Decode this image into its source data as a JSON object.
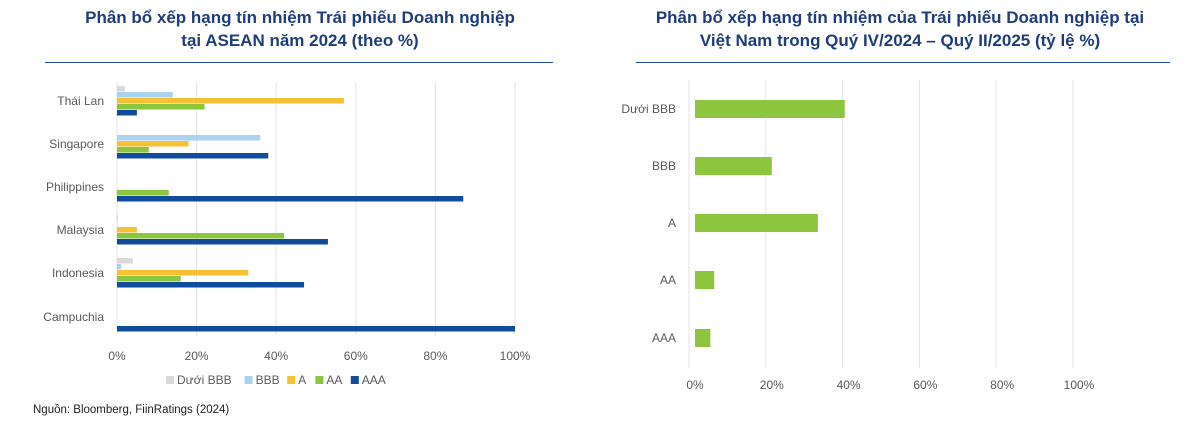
{
  "source": "Nguồn: Bloomberg, FiinRatings (2024)",
  "chart_data": [
    {
      "type": "bar",
      "orientation": "horizontal",
      "title": "Phân bổ xếp hạng tín nhiệm Trái phiếu Doanh nghiệp tại ASEAN năm 2024 (theo %)",
      "title_lines": [
        "Phân bổ xếp hạng tín nhiệm Trái phiếu Doanh nghiệp",
        "tại ASEAN năm 2024 (theo %)"
      ],
      "categories": [
        "Thái Lan",
        "Singapore",
        "Philippines",
        "Malaysia",
        "Indonesia",
        "Campuchia"
      ],
      "series": [
        {
          "name": "Dưới BBB",
          "color": "#d9d9d9",
          "values": [
            2,
            0,
            0,
            0.3,
            4,
            0
          ]
        },
        {
          "name": "BBB",
          "color": "#a9d3f0",
          "values": [
            14,
            36,
            0,
            0,
            1,
            0
          ]
        },
        {
          "name": "A",
          "color": "#f5c034",
          "values": [
            57,
            18,
            0,
            5,
            33,
            0
          ]
        },
        {
          "name": "AA",
          "color": "#8cc63f",
          "values": [
            22,
            8,
            13,
            42,
            16,
            0
          ]
        },
        {
          "name": "AAA",
          "color": "#0f4c9c",
          "values": [
            5,
            38,
            87,
            53,
            47,
            100
          ]
        }
      ],
      "xlim": [
        0,
        100
      ],
      "xticks": [
        "0%",
        "20%",
        "40%",
        "60%",
        "80%",
        "100%"
      ],
      "grid": true,
      "legend": "bottom"
    },
    {
      "type": "bar",
      "orientation": "horizontal",
      "title": "Phân bổ xếp hạng tín nhiệm của Trái phiếu Doanh nghiệp tại Việt Nam trong Quý IV/2024 – Quý II/2025 (tỷ lệ %)",
      "title_lines": [
        "Phân bổ xếp hạng tín nhiệm của Trái phiếu Doanh nghiệp tại",
        "Việt Nam trong Quý IV/2024 – Quý II/2025 (tỷ lệ %)"
      ],
      "categories": [
        "Dưới BBB",
        "BBB",
        "A",
        "AA",
        "AAA"
      ],
      "values": [
        39,
        20,
        32,
        5,
        4
      ],
      "color": "#8cc63f",
      "xlim": [
        0,
        100
      ],
      "xticks": [
        "0%",
        "20%",
        "40%",
        "60%",
        "80%",
        "100%"
      ],
      "grid": true
    }
  ]
}
